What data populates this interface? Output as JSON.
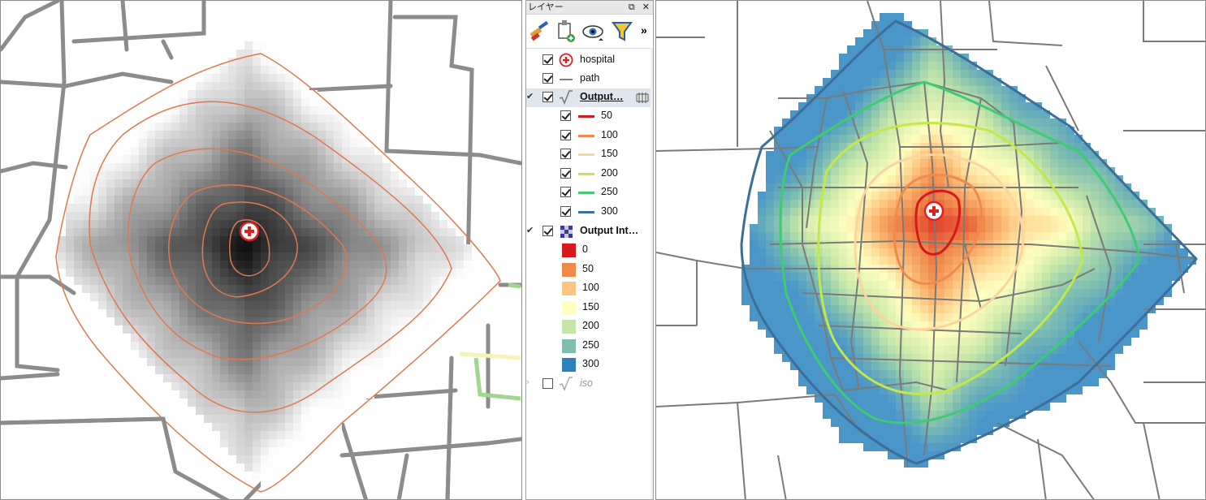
{
  "layers_panel": {
    "title": "レイヤー",
    "more": "»",
    "layers": [
      {
        "name": "hospital",
        "visible": true,
        "icon": "hospital-icon"
      },
      {
        "name": "path",
        "visible": true,
        "icon": "line-icon"
      },
      {
        "name": "Output…",
        "visible": true,
        "icon": "sqrt-vector-icon",
        "selected": true,
        "classes": [
          {
            "label": "50",
            "color": "#d7191c"
          },
          {
            "label": "100",
            "color": "#f08a4b"
          },
          {
            "label": "150",
            "color": "#fdd49e"
          },
          {
            "label": "200",
            "color": "#c4e84a"
          },
          {
            "label": "250",
            "color": "#3fcb72"
          },
          {
            "label": "300",
            "color": "#3d6e99"
          }
        ]
      },
      {
        "name": "Output Int…",
        "visible": true,
        "icon": "raster-icon",
        "classes": [
          {
            "label": "0",
            "color": "#d7191c"
          },
          {
            "label": "50",
            "color": "#f08a4b"
          },
          {
            "label": "100",
            "color": "#fdc57f"
          },
          {
            "label": "150",
            "color": "#ffffbf"
          },
          {
            "label": "200",
            "color": "#c4e6a8"
          },
          {
            "label": "250",
            "color": "#7fbfb0"
          },
          {
            "label": "300",
            "color": "#2b83ba"
          }
        ]
      },
      {
        "name": "iso",
        "visible": false,
        "icon": "sqrt-vector-icon"
      }
    ]
  },
  "colors": {
    "road_left": "#8c8c8c",
    "road_right": "#7a7a7a",
    "contour_left": "#e0784f",
    "hospital": "#e02020"
  }
}
